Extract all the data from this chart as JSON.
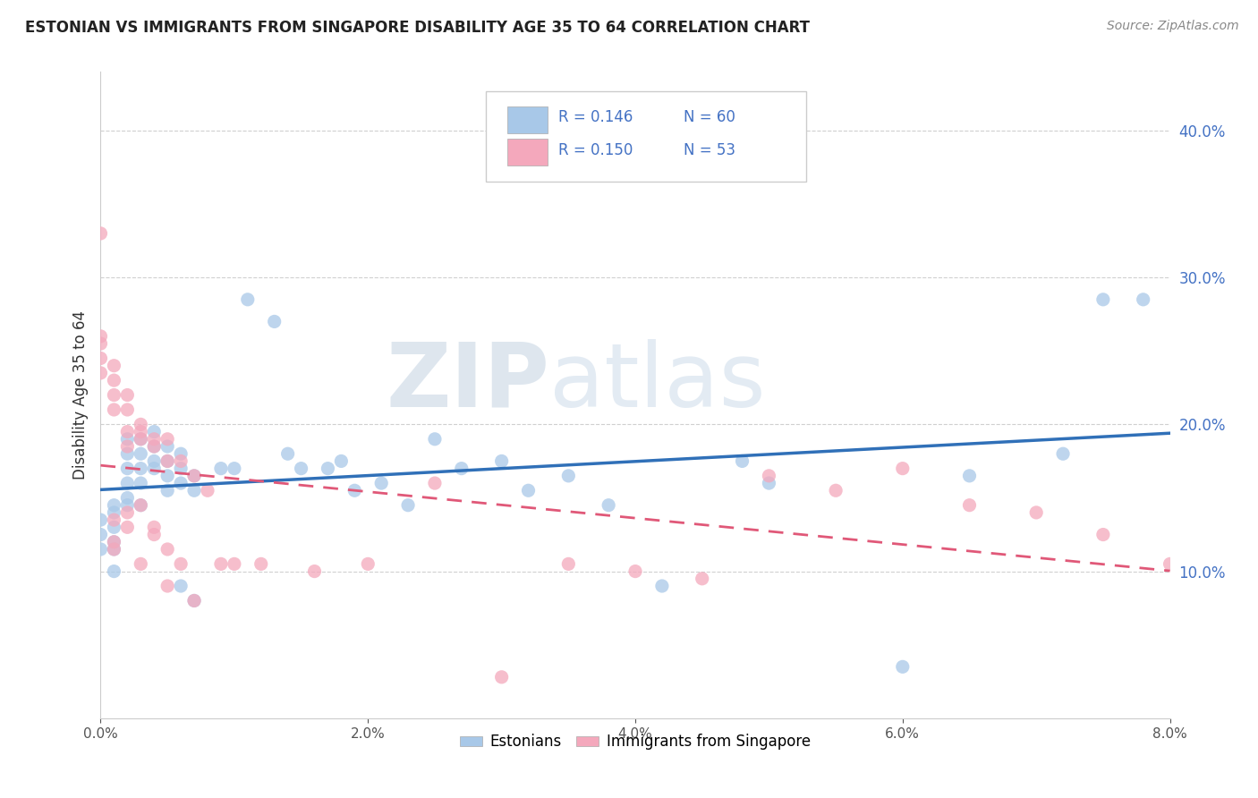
{
  "title": "ESTONIAN VS IMMIGRANTS FROM SINGAPORE DISABILITY AGE 35 TO 64 CORRELATION CHART",
  "source_text": "Source: ZipAtlas.com",
  "ylabel": "Disability Age 35 to 64",
  "xlabel": "",
  "xlim": [
    0.0,
    0.08
  ],
  "ylim": [
    0.0,
    0.44
  ],
  "xticks": [
    0.0,
    0.02,
    0.04,
    0.06,
    0.08
  ],
  "yticks": [
    0.1,
    0.2,
    0.3,
    0.4
  ],
  "legend_labels": [
    "Estonians",
    "Immigrants from Singapore"
  ],
  "legend_r": [
    "R = 0.146",
    "R = 0.150"
  ],
  "legend_n": [
    "N = 60",
    "N = 53"
  ],
  "color_estonian": "#a8c8e8",
  "color_immigrant": "#f4a8bc",
  "trendline_color_estonian": "#3070b8",
  "trendline_color_immigrant": "#e05878",
  "watermark_zip": "ZIP",
  "watermark_atlas": "atlas",
  "background_color": "#ffffff",
  "grid_color": "#d0d0d0",
  "estonian_x": [
    0.0,
    0.0,
    0.0,
    0.001,
    0.001,
    0.001,
    0.001,
    0.001,
    0.002,
    0.002,
    0.002,
    0.002,
    0.002,
    0.003,
    0.003,
    0.003,
    0.003,
    0.004,
    0.004,
    0.004,
    0.005,
    0.005,
    0.005,
    0.006,
    0.006,
    0.006,
    0.007,
    0.007,
    0.009,
    0.011,
    0.013,
    0.015,
    0.017,
    0.019,
    0.021,
    0.023,
    0.025,
    0.027,
    0.03,
    0.032,
    0.035,
    0.038,
    0.042,
    0.048,
    0.05,
    0.06,
    0.065,
    0.072,
    0.075,
    0.078,
    0.001,
    0.002,
    0.003,
    0.004,
    0.005,
    0.006,
    0.007,
    0.01,
    0.014,
    0.018
  ],
  "estonian_y": [
    0.135,
    0.125,
    0.115,
    0.14,
    0.13,
    0.12,
    0.115,
    0.1,
    0.19,
    0.18,
    0.17,
    0.16,
    0.15,
    0.19,
    0.18,
    0.17,
    0.16,
    0.195,
    0.185,
    0.175,
    0.185,
    0.175,
    0.165,
    0.18,
    0.17,
    0.09,
    0.165,
    0.08,
    0.17,
    0.285,
    0.27,
    0.17,
    0.17,
    0.155,
    0.16,
    0.145,
    0.19,
    0.17,
    0.175,
    0.155,
    0.165,
    0.145,
    0.09,
    0.175,
    0.16,
    0.035,
    0.165,
    0.18,
    0.285,
    0.285,
    0.145,
    0.145,
    0.145,
    0.17,
    0.155,
    0.16,
    0.155,
    0.17,
    0.18,
    0.175
  ],
  "immigrant_x": [
    0.0,
    0.0,
    0.0,
    0.0,
    0.0,
    0.001,
    0.001,
    0.001,
    0.001,
    0.001,
    0.002,
    0.002,
    0.002,
    0.002,
    0.003,
    0.003,
    0.003,
    0.004,
    0.004,
    0.005,
    0.005,
    0.006,
    0.006,
    0.007,
    0.007,
    0.008,
    0.009,
    0.01,
    0.012,
    0.016,
    0.02,
    0.025,
    0.03,
    0.035,
    0.04,
    0.045,
    0.05,
    0.055,
    0.001,
    0.002,
    0.003,
    0.004,
    0.005,
    0.001,
    0.002,
    0.003,
    0.004,
    0.005,
    0.06,
    0.065,
    0.07,
    0.075,
    0.08
  ],
  "immigrant_y": [
    0.33,
    0.26,
    0.255,
    0.245,
    0.235,
    0.24,
    0.23,
    0.22,
    0.21,
    0.135,
    0.22,
    0.21,
    0.195,
    0.13,
    0.2,
    0.19,
    0.105,
    0.19,
    0.125,
    0.19,
    0.09,
    0.175,
    0.105,
    0.165,
    0.08,
    0.155,
    0.105,
    0.105,
    0.105,
    0.1,
    0.105,
    0.16,
    0.028,
    0.105,
    0.1,
    0.095,
    0.165,
    0.155,
    0.12,
    0.185,
    0.195,
    0.185,
    0.175,
    0.115,
    0.14,
    0.145,
    0.13,
    0.115,
    0.17,
    0.145,
    0.14,
    0.125,
    0.105
  ]
}
